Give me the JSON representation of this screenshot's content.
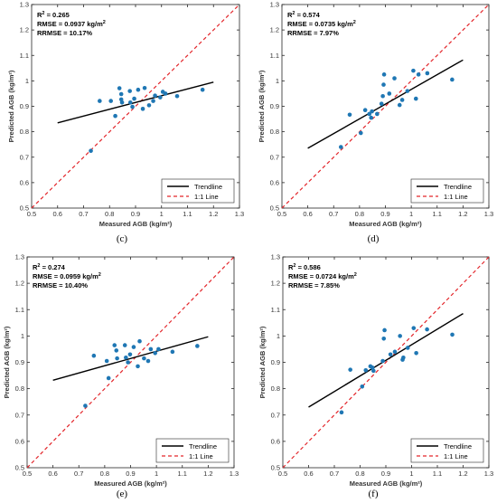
{
  "chart_data": [
    {
      "type": "scatter",
      "panel": "(c)",
      "caption": "(c)",
      "xlabel": "Measured AGB  (kg/m²)",
      "ylabel": "Predicted AGB (kg/m²)",
      "xlim": [
        0.5,
        1.3
      ],
      "ylim": [
        0.5,
        1.3
      ],
      "xticks": [
        "0.5",
        "0.6",
        "0.7",
        "0.8",
        "0.9",
        "1",
        "1.1",
        "1.2",
        "1.3"
      ],
      "yticks": [
        "0.5",
        "0.6",
        "0.7",
        "0.8",
        "0.9",
        "1",
        "1.1",
        "1.2",
        "1.3"
      ],
      "stats": [
        "R² = 0.265",
        "RMSE = 0.0937 kg/m²",
        "RRMSE = 10.17%"
      ],
      "legend": {
        "position": "bottom-right",
        "entries": [
          "Trendline",
          "1:1 Line"
        ]
      },
      "points": [
        {
          "x": 0.728,
          "y": 0.725
        },
        {
          "x": 0.762,
          "y": 0.921
        },
        {
          "x": 0.805,
          "y": 0.921
        },
        {
          "x": 0.822,
          "y": 0.862
        },
        {
          "x": 0.838,
          "y": 0.971
        },
        {
          "x": 0.845,
          "y": 0.927
        },
        {
          "x": 0.845,
          "y": 0.948
        },
        {
          "x": 0.848,
          "y": 0.915
        },
        {
          "x": 0.878,
          "y": 0.96
        },
        {
          "x": 0.88,
          "y": 0.915
        },
        {
          "x": 0.888,
          "y": 0.898
        },
        {
          "x": 0.895,
          "y": 0.93
        },
        {
          "x": 0.91,
          "y": 0.965
        },
        {
          "x": 0.928,
          "y": 0.89
        },
        {
          "x": 0.935,
          "y": 0.972
        },
        {
          "x": 0.952,
          "y": 0.904
        },
        {
          "x": 0.968,
          "y": 0.921
        },
        {
          "x": 0.975,
          "y": 0.942
        },
        {
          "x": 0.995,
          "y": 0.935
        },
        {
          "x": 1.005,
          "y": 0.957
        },
        {
          "x": 1.015,
          "y": 0.95
        },
        {
          "x": 1.06,
          "y": 0.94
        },
        {
          "x": 1.158,
          "y": 0.965
        }
      ],
      "trendline": {
        "x": [
          0.6,
          1.2
        ],
        "y": [
          0.835,
          0.995
        ]
      },
      "identity": {
        "x": [
          0.5,
          1.3
        ],
        "y": [
          0.5,
          1.3
        ]
      }
    },
    {
      "type": "scatter",
      "panel": "(d)",
      "caption": "(d)",
      "xlabel": "Measured AGB  (kg/m²)",
      "ylabel": "Predicted AGB (kg/m²)",
      "xlim": [
        0.5,
        1.3
      ],
      "ylim": [
        0.5,
        1.3
      ],
      "xticks": [
        "0.5",
        "0.6",
        "0.7",
        "0.8",
        "0.9",
        "1",
        "1.1",
        "1.2",
        "1.3"
      ],
      "yticks": [
        "0.5",
        "0.6",
        "0.7",
        "0.8",
        "0.9",
        "1",
        "1.1",
        "1.2",
        "1.3"
      ],
      "stats": [
        "R² = 0.574",
        "RMSE = 0.0735 kg/m²",
        "RRMSE = 7.97%"
      ],
      "legend": {
        "position": "bottom-right",
        "entries": [
          "Trendline",
          "1:1 Line"
        ]
      },
      "points": [
        {
          "x": 0.728,
          "y": 0.74
        },
        {
          "x": 0.762,
          "y": 0.867
        },
        {
          "x": 0.805,
          "y": 0.795
        },
        {
          "x": 0.822,
          "y": 0.885
        },
        {
          "x": 0.838,
          "y": 0.87
        },
        {
          "x": 0.845,
          "y": 0.855
        },
        {
          "x": 0.848,
          "y": 0.88
        },
        {
          "x": 0.868,
          "y": 0.87
        },
        {
          "x": 0.885,
          "y": 0.91
        },
        {
          "x": 0.89,
          "y": 0.94
        },
        {
          "x": 0.893,
          "y": 0.985
        },
        {
          "x": 0.895,
          "y": 1.025
        },
        {
          "x": 0.915,
          "y": 0.95
        },
        {
          "x": 0.935,
          "y": 1.01
        },
        {
          "x": 0.955,
          "y": 0.905
        },
        {
          "x": 0.965,
          "y": 0.925
        },
        {
          "x": 0.985,
          "y": 0.96
        },
        {
          "x": 1.008,
          "y": 1.04
        },
        {
          "x": 1.018,
          "y": 0.93
        },
        {
          "x": 1.028,
          "y": 1.025
        },
        {
          "x": 1.062,
          "y": 1.03
        },
        {
          "x": 1.158,
          "y": 1.005
        }
      ],
      "trendline": {
        "x": [
          0.6,
          1.2
        ],
        "y": [
          0.735,
          1.082
        ]
      },
      "identity": {
        "x": [
          0.5,
          1.3
        ],
        "y": [
          0.5,
          1.3
        ]
      }
    },
    {
      "type": "scatter",
      "panel": "(e)",
      "caption": "(e)",
      "xlabel": "Measured AGB  (kg/m²)",
      "ylabel": "Predicted AGB (kg/m²)",
      "xlim": [
        0.5,
        1.3
      ],
      "ylim": [
        0.5,
        1.3
      ],
      "xticks": [
        "0.5",
        "0.6",
        "0.7",
        "0.8",
        "0.9",
        "1",
        "1.1",
        "1.2",
        "1.3"
      ],
      "yticks": [
        "0.5",
        "0.6",
        "0.7",
        "0.8",
        "0.9",
        "1",
        "1.1",
        "1.2",
        "1.3"
      ],
      "stats": [
        "R² = 0.274",
        "RMSE = 0.0959 kg/m²",
        "RRMSE = 10.40%"
      ],
      "legend": {
        "position": "bottom-right",
        "entries": [
          "Trendline",
          "1:1 Line"
        ]
      },
      "points": [
        {
          "x": 0.725,
          "y": 0.735
        },
        {
          "x": 0.758,
          "y": 0.925
        },
        {
          "x": 0.808,
          "y": 0.905
        },
        {
          "x": 0.815,
          "y": 0.84
        },
        {
          "x": 0.838,
          "y": 0.965
        },
        {
          "x": 0.845,
          "y": 0.945
        },
        {
          "x": 0.848,
          "y": 0.915
        },
        {
          "x": 0.878,
          "y": 0.965
        },
        {
          "x": 0.882,
          "y": 0.918
        },
        {
          "x": 0.89,
          "y": 0.9
        },
        {
          "x": 0.898,
          "y": 0.93
        },
        {
          "x": 0.912,
          "y": 0.958
        },
        {
          "x": 0.928,
          "y": 0.885
        },
        {
          "x": 0.935,
          "y": 0.98
        },
        {
          "x": 0.952,
          "y": 0.915
        },
        {
          "x": 0.968,
          "y": 0.905
        },
        {
          "x": 0.978,
          "y": 0.95
        },
        {
          "x": 0.995,
          "y": 0.935
        },
        {
          "x": 1.008,
          "y": 0.95
        },
        {
          "x": 1.062,
          "y": 0.94
        },
        {
          "x": 1.158,
          "y": 0.962
        }
      ],
      "trendline": {
        "x": [
          0.6,
          1.2
        ],
        "y": [
          0.832,
          0.997
        ]
      },
      "identity": {
        "x": [
          0.5,
          1.3
        ],
        "y": [
          0.5,
          1.3
        ]
      }
    },
    {
      "type": "scatter",
      "panel": "(f)",
      "caption": "(f)",
      "xlabel": "Measured AGB  (kg/m²)",
      "ylabel": "Predicted AGB (kg/m²)",
      "xlim": [
        0.5,
        1.3
      ],
      "ylim": [
        0.5,
        1.3
      ],
      "xticks": [
        "0.5",
        "0.6",
        "0.7",
        "0.8",
        "0.9",
        "1",
        "1.1",
        "1.2",
        "1.3"
      ],
      "yticks": [
        "0.5",
        "0.6",
        "0.7",
        "0.8",
        "0.9",
        "1",
        "1.1",
        "1.2",
        "1.3"
      ],
      "stats": [
        "R² = 0.586",
        "RMSE = 0.0724 kg/m²",
        "RRMSE = 7.85%"
      ],
      "legend": {
        "position": "bottom-right",
        "entries": [
          "Trendline",
          "1:1 Line"
        ]
      },
      "points": [
        {
          "x": 0.728,
          "y": 0.71
        },
        {
          "x": 0.762,
          "y": 0.872
        },
        {
          "x": 0.808,
          "y": 0.808
        },
        {
          "x": 0.822,
          "y": 0.87
        },
        {
          "x": 0.84,
          "y": 0.885
        },
        {
          "x": 0.848,
          "y": 0.88
        },
        {
          "x": 0.852,
          "y": 0.868
        },
        {
          "x": 0.888,
          "y": 0.905
        },
        {
          "x": 0.892,
          "y": 0.99
        },
        {
          "x": 0.895,
          "y": 1.022
        },
        {
          "x": 0.918,
          "y": 0.93
        },
        {
          "x": 0.935,
          "y": 0.94
        },
        {
          "x": 0.955,
          "y": 1.0
        },
        {
          "x": 0.965,
          "y": 0.91
        },
        {
          "x": 0.968,
          "y": 0.918
        },
        {
          "x": 0.985,
          "y": 0.955
        },
        {
          "x": 1.008,
          "y": 1.03
        },
        {
          "x": 1.018,
          "y": 0.935
        },
        {
          "x": 1.06,
          "y": 1.025
        },
        {
          "x": 1.158,
          "y": 1.005
        }
      ],
      "trendline": {
        "x": [
          0.6,
          1.2
        ],
        "y": [
          0.73,
          1.085
        ]
      },
      "identity": {
        "x": [
          0.5,
          1.3
        ],
        "y": [
          0.5,
          1.3
        ]
      }
    }
  ],
  "colors": {
    "points": "#1f77b4",
    "trendline": "#000000",
    "identity": "#e3262b",
    "axis": "#262626"
  }
}
